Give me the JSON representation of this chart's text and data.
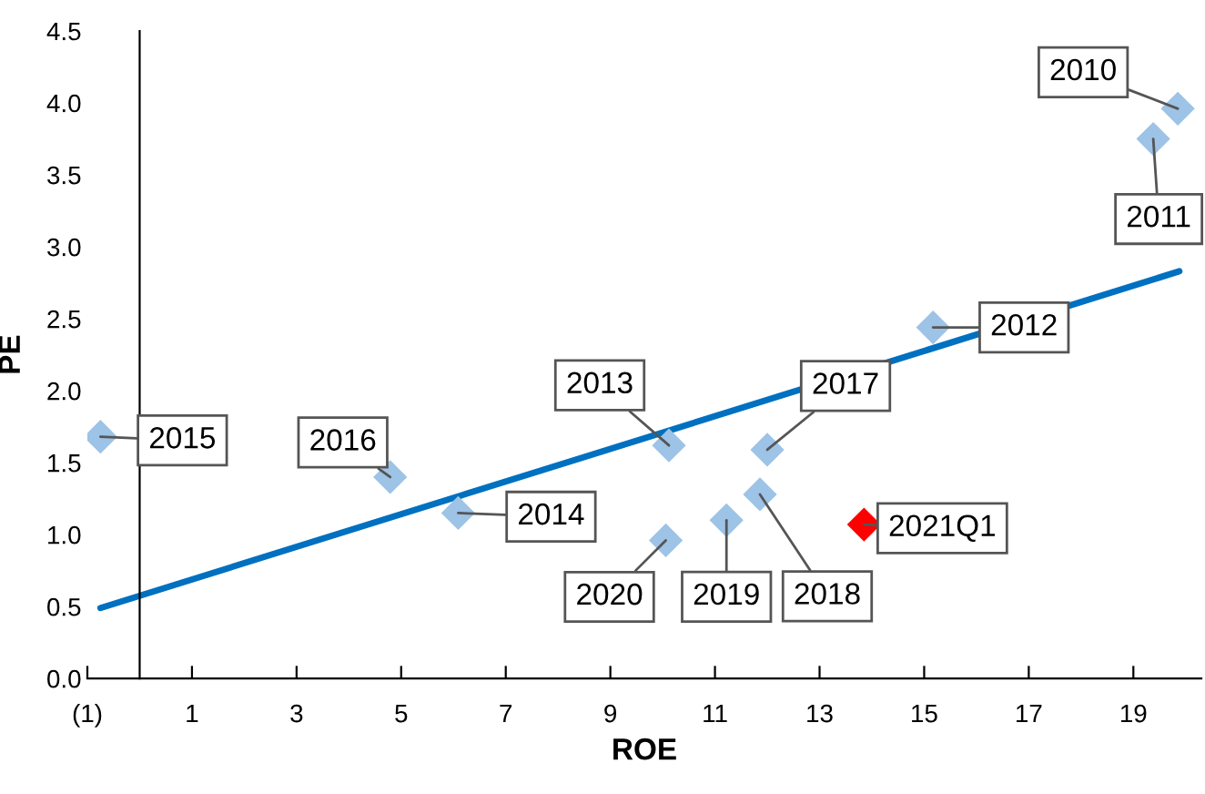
{
  "chart_data": {
    "type": "scatter",
    "xlabel": "ROE",
    "ylabel": "PE",
    "xlim": [
      -1,
      20.3
    ],
    "ylim": [
      0,
      4.5
    ],
    "xticks": [
      {
        "value": -1,
        "label": "(1)"
      },
      1,
      3,
      5,
      7,
      9,
      11,
      13,
      15,
      17,
      19
    ],
    "yticks": [
      {
        "value": 0,
        "label": "0.0"
      },
      0.5,
      {
        "value": 1,
        "label": "1.0"
      },
      1.5,
      {
        "value": 2,
        "label": "2.0"
      },
      2.5,
      {
        "value": 3,
        "label": "3.0"
      },
      3.5,
      {
        "value": 4,
        "label": "4.0"
      },
      4.5
    ],
    "marker": "diamond",
    "grid": false,
    "legend": false,
    "series": [
      {
        "color": "#9dc3e6",
        "x": [
          19.85,
          19.38,
          15.17,
          10.12,
          6.09,
          -0.75,
          4.79,
          12.0,
          11.86,
          11.22,
          10.06
        ],
        "values": [
          3.96,
          3.75,
          2.44,
          1.62,
          1.15,
          1.68,
          1.4,
          1.59,
          1.28,
          1.1,
          0.96
        ]
      },
      {
        "color": "#ff0000",
        "x": [
          13.85
        ],
        "values": [
          1.07
        ]
      },
      {
        "type": "line",
        "marker": "none",
        "color": "#0070c0",
        "x": [
          -0.75,
          19.88
        ],
        "values": [
          0.49,
          2.83
        ]
      }
    ],
    "annotations": [
      {
        "text": "2010",
        "x": 19.85,
        "y": 3.96
      },
      {
        "text": "2011",
        "x": 19.38,
        "y": 3.75
      },
      {
        "text": "2012",
        "x": 15.17,
        "y": 2.44
      },
      {
        "text": "2013",
        "x": 10.12,
        "y": 1.62
      },
      {
        "text": "2014",
        "x": 6.09,
        "y": 1.15
      },
      {
        "text": "2015",
        "x": -0.75,
        "y": 1.68
      },
      {
        "text": "2016",
        "x": 4.79,
        "y": 1.4
      },
      {
        "text": "2017",
        "x": 12.0,
        "y": 1.59
      },
      {
        "text": "2018",
        "x": 11.86,
        "y": 1.28
      },
      {
        "text": "2019",
        "x": 11.22,
        "y": 1.1
      },
      {
        "text": "2020",
        "x": 10.06,
        "y": 0.96
      },
      {
        "text": "2021Q1",
        "x": 13.85,
        "y": 1.07
      }
    ]
  }
}
